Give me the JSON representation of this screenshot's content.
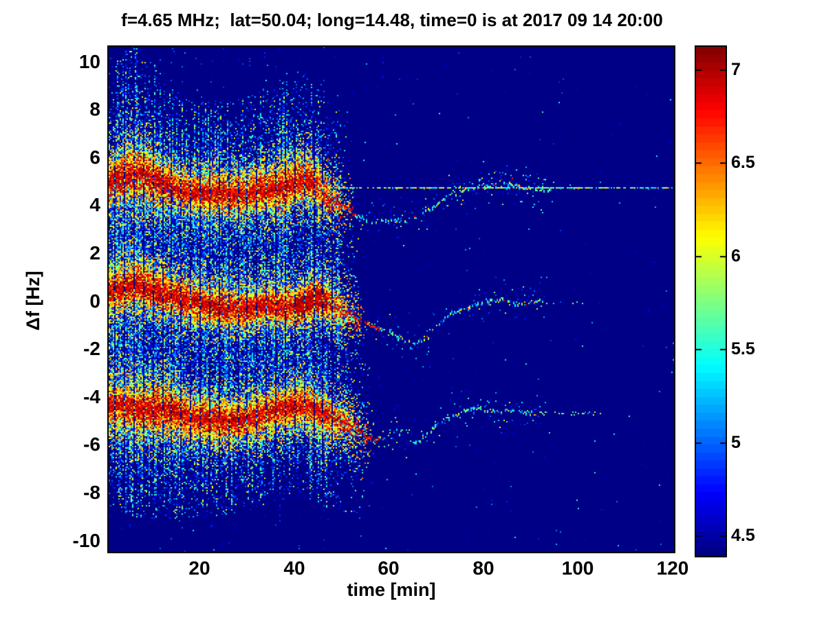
{
  "figure": {
    "background_color": "#ffffff",
    "frame_color": "#000000"
  },
  "chart_data": {
    "type": "heatmap",
    "subtype": "doppler-spectrogram",
    "title": "f=4.65 MHz;  lat=50.04; long=14.48, time=0 is at 2017 09 14 20:00",
    "xlabel": "time [min]",
    "ylabel": "Δf [Hz]",
    "xlim": [
      0.8,
      120.3
    ],
    "ylim": [
      -10.47,
      10.62
    ],
    "x_ticks": [
      20,
      40,
      60,
      80,
      100,
      120
    ],
    "y_ticks": [
      10,
      8,
      6,
      4,
      2,
      0,
      -2,
      -4,
      -6,
      -8,
      -10
    ],
    "grid": false,
    "colormap": "jet",
    "background_value": 4.42,
    "colorbar": {
      "position": "right",
      "min": 4.39,
      "max": 7.12,
      "ticks": [
        7,
        6.5,
        6,
        5.5,
        5,
        4.5
      ],
      "tick_labels": [
        "7",
        "6.5",
        "6",
        "5.5",
        "5",
        "4.5"
      ]
    },
    "stripes": {
      "interval_min": 2.0,
      "t_end": 50
    },
    "bands": [
      {
        "name": "upper sideband ~ +4.7 Hz",
        "center_track": [
          [
            0.8,
            5.0
          ],
          [
            3,
            5.05
          ],
          [
            5,
            5.2
          ],
          [
            7,
            5.3
          ],
          [
            9,
            5.15
          ],
          [
            12,
            4.9
          ],
          [
            15,
            4.65
          ],
          [
            18,
            4.5
          ],
          [
            21,
            4.45
          ],
          [
            24,
            4.55
          ],
          [
            27,
            4.4
          ],
          [
            30,
            4.5
          ],
          [
            33,
            4.65
          ],
          [
            36,
            4.7
          ],
          [
            39,
            4.8
          ],
          [
            41,
            5.0
          ],
          [
            43,
            5.1
          ],
          [
            45,
            4.8
          ],
          [
            47,
            4.4
          ],
          [
            50,
            4.05
          ],
          [
            53,
            3.6
          ],
          [
            56,
            3.35
          ],
          [
            60,
            3.3
          ],
          [
            64,
            3.4
          ],
          [
            67,
            3.6
          ],
          [
            70,
            4.0
          ],
          [
            73,
            4.45
          ],
          [
            76,
            4.65
          ],
          [
            79,
            4.8
          ],
          [
            82,
            4.85
          ],
          [
            84,
            5.0
          ],
          [
            86,
            4.9
          ],
          [
            88,
            4.75
          ],
          [
            91,
            4.65
          ],
          [
            95,
            4.7
          ]
        ],
        "broad_fade": [
          44,
          53
        ],
        "width_pulses": [
          [
            6,
            5,
            0.4
          ],
          [
            38,
            6,
            0.15
          ]
        ],
        "trace": {
          "t_start": 44,
          "t_red_end": 53,
          "t_end": 95
        },
        "extra_scatter": [
          73,
          91
        ],
        "persistent_line": {
          "freq": 4.72,
          "t_start": 45,
          "t_end": 120.3
        }
      },
      {
        "name": "carrier ~ 0 Hz",
        "center_track": [
          [
            0.8,
            0.35
          ],
          [
            3,
            0.5
          ],
          [
            5,
            0.55
          ],
          [
            7,
            0.7
          ],
          [
            9,
            0.6
          ],
          [
            11,
            0.4
          ],
          [
            13,
            0.25
          ],
          [
            16,
            0.1
          ],
          [
            19,
            -0.05
          ],
          [
            22,
            -0.2
          ],
          [
            25,
            -0.3
          ],
          [
            28,
            -0.35
          ],
          [
            31,
            -0.3
          ],
          [
            34,
            -0.15
          ],
          [
            37,
            -0.2
          ],
          [
            40,
            -0.3
          ],
          [
            42,
            -0.15
          ],
          [
            44,
            0.1
          ],
          [
            46,
            0.1
          ],
          [
            48,
            -0.15
          ],
          [
            51,
            -0.5
          ],
          [
            54,
            -0.8
          ],
          [
            57,
            -1.05
          ],
          [
            60,
            -1.35
          ],
          [
            63,
            -1.6
          ],
          [
            66,
            -1.8
          ],
          [
            68,
            -1.55
          ],
          [
            70,
            -1.1
          ],
          [
            72,
            -0.7
          ],
          [
            74,
            -0.45
          ],
          [
            76,
            -0.3
          ],
          [
            78,
            -0.15
          ],
          [
            80,
            -0.1
          ],
          [
            82,
            0.0
          ],
          [
            84,
            0.05
          ],
          [
            86,
            -0.05
          ],
          [
            88,
            -0.1
          ],
          [
            90,
            -0.05
          ],
          [
            93,
            0.0
          ]
        ],
        "broad_fade": [
          46,
          55
        ],
        "width_pulses": [
          [
            8,
            6,
            0.25
          ]
        ],
        "hot_knot": [
          40,
          47
        ],
        "trace": {
          "t_start": 46,
          "t_red_end": 58,
          "t_end": 93
        },
        "tail": {
          "t_start": 93,
          "t_end": 104,
          "freq": -0.05,
          "p": 0.1
        }
      },
      {
        "name": "lower sideband ~ -4.7 Hz",
        "center_track": [
          [
            0.8,
            -4.35
          ],
          [
            3,
            -4.3
          ],
          [
            5,
            -4.45
          ],
          [
            8,
            -4.55
          ],
          [
            10,
            -4.5
          ],
          [
            13,
            -4.55
          ],
          [
            16,
            -4.7
          ],
          [
            19,
            -4.9
          ],
          [
            22,
            -4.95
          ],
          [
            25,
            -5.0
          ],
          [
            28,
            -5.0
          ],
          [
            31,
            -4.9
          ],
          [
            33,
            -4.75
          ],
          [
            36,
            -4.55
          ],
          [
            39,
            -4.45
          ],
          [
            41,
            -4.35
          ],
          [
            43,
            -4.4
          ],
          [
            45,
            -4.6
          ],
          [
            47,
            -4.8
          ],
          [
            49,
            -4.95
          ],
          [
            51,
            -5.1
          ],
          [
            53,
            -5.35
          ],
          [
            55,
            -5.55
          ],
          [
            57,
            -5.8
          ],
          [
            59,
            -5.7
          ],
          [
            61,
            -5.45
          ],
          [
            63,
            -5.5
          ],
          [
            65,
            -5.9
          ],
          [
            67,
            -5.8
          ],
          [
            69,
            -5.4
          ],
          [
            71,
            -5.05
          ],
          [
            73,
            -4.85
          ],
          [
            75,
            -4.65
          ],
          [
            77,
            -4.5
          ],
          [
            79,
            -4.5
          ],
          [
            81,
            -4.6
          ],
          [
            83,
            -4.6
          ],
          [
            85,
            -4.55
          ],
          [
            87,
            -4.6
          ],
          [
            89,
            -4.65
          ],
          [
            92,
            -4.7
          ]
        ],
        "broad_fade": [
          46,
          57
        ],
        "width_pulses": [
          [
            10,
            8,
            0.2
          ]
        ],
        "trace": {
          "t_start": 46,
          "t_red_end": 58,
          "t_end": 92
        },
        "tail": {
          "t_start": 92,
          "t_end": 105,
          "freq": -4.7,
          "p": 0.38
        }
      }
    ]
  }
}
